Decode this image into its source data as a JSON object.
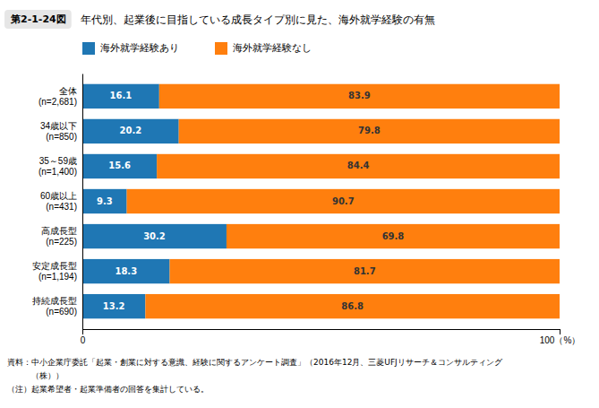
{
  "chart_data": {
    "type": "bar",
    "orientation": "horizontal",
    "stacked": true,
    "title": "年代別、起業後に目指している成長タイプ別に見た、海外就学経験の有無",
    "annotations": [
      "第2-1-24図",
      "資料：中小企業庁委託「起業・創業に対する意識、経験に関するアンケート調査」（2016年12月、三菱UFJリサーチ＆コンサルティング",
      "　　　（株））",
      "（注）起業希望者・起業準備者の回答を集計している。"
    ],
    "categories": [
      "全体\n(n=2,681)",
      "34歳以下\n(n=850)",
      "35～59歳\n(n=1,400)",
      "60歳以上\n(n=431)",
      "高成長型\n(n=225)",
      "安定成長型\n(n=1,194)",
      "持続成長型\n(n=690)"
    ],
    "series": [
      {
        "name": "海外就学経験あり",
        "values": [
          16.1,
          20.2,
          15.6,
          9.3,
          30.2,
          18.3,
          13.2
        ]
      },
      {
        "name": "海外就学経験なし",
        "values": [
          83.9,
          79.8,
          84.4,
          90.7,
          69.8,
          81.7,
          86.8
        ]
      }
    ],
    "xlim": [
      0,
      100
    ],
    "xticks": [
      0,
      {
        "value": 100,
        "label": "100（%）"
      }
    ],
    "data_labels": true,
    "legend": "top",
    "grid": false
  }
}
